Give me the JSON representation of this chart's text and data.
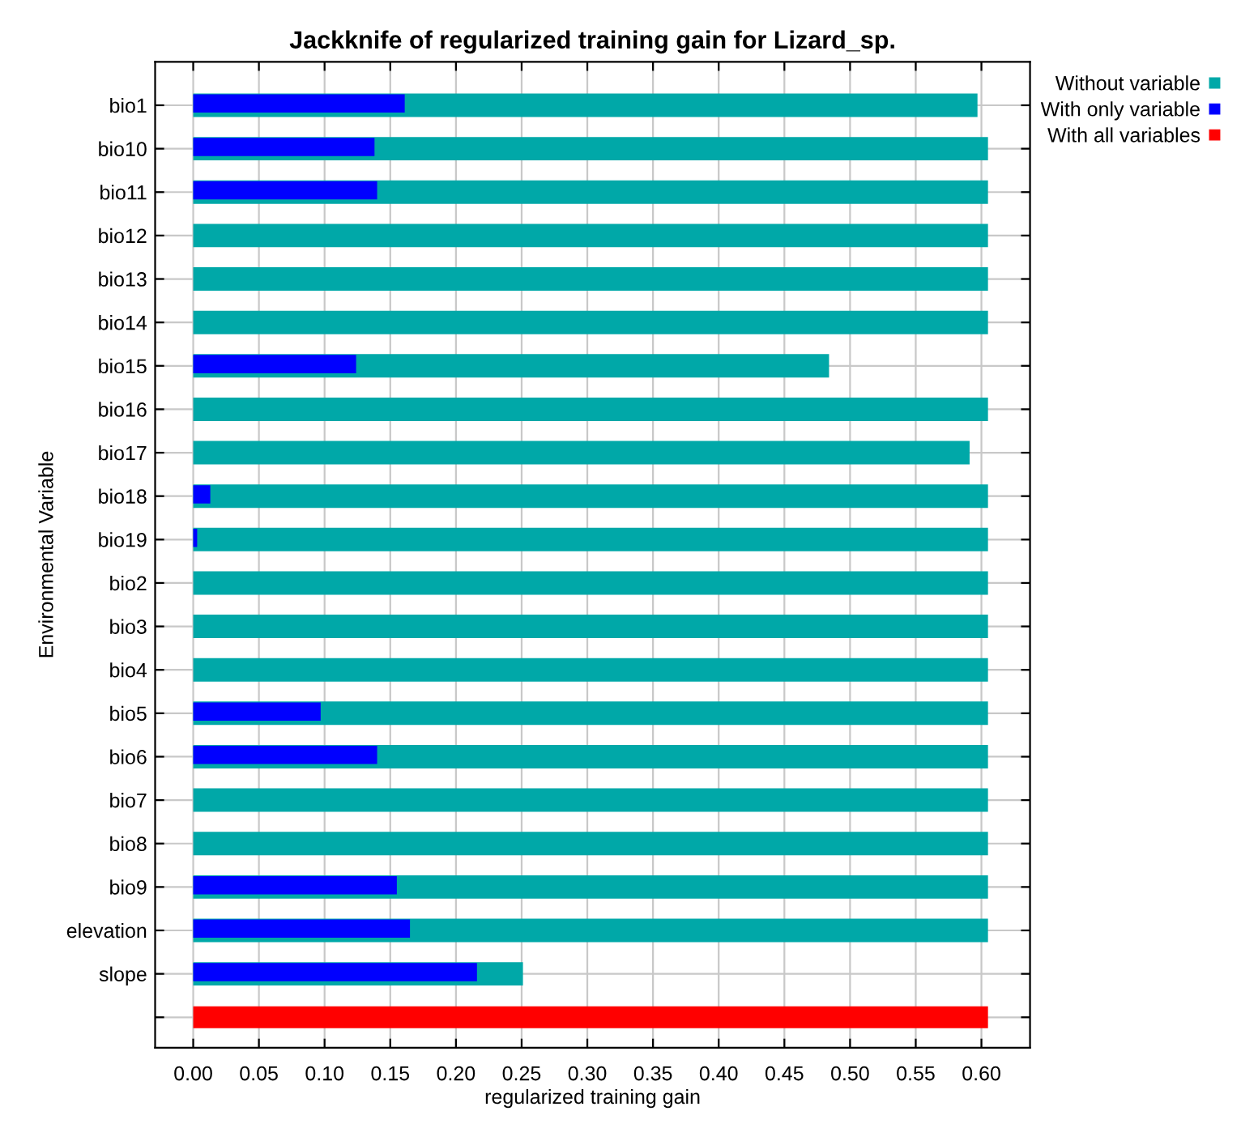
{
  "chart_data": {
    "type": "bar",
    "orientation": "horizontal",
    "title": "Jackknife of regularized training gain for Lizard_sp.",
    "xlabel": "regularized training gain",
    "ylabel": "Environmental Variable",
    "categories": [
      "bio1",
      "bio10",
      "bio11",
      "bio12",
      "bio13",
      "bio14",
      "bio15",
      "bio16",
      "bio17",
      "bio18",
      "bio19",
      "bio2",
      "bio3",
      "bio4",
      "bio5",
      "bio6",
      "bio7",
      "bio8",
      "bio9",
      "elevation",
      "slope",
      null
    ],
    "series": [
      {
        "name": "Without variable",
        "color": "#00a8a8",
        "values": [
          0.597,
          0.605,
          0.605,
          0.605,
          0.605,
          0.605,
          0.484,
          0.605,
          0.591,
          0.605,
          0.605,
          0.605,
          0.605,
          0.605,
          0.605,
          0.605,
          0.605,
          0.605,
          0.605,
          0.605,
          0.251,
          null
        ]
      },
      {
        "name": "With only variable",
        "color": "#0000ff",
        "values": [
          0.161,
          0.138,
          0.14,
          0,
          0,
          0,
          0.124,
          0,
          0,
          0.013,
          0.003,
          0,
          0,
          0,
          0.097,
          0.14,
          0,
          0,
          0.155,
          0.165,
          0.216,
          null
        ]
      },
      {
        "name": "With all variables",
        "color": "#ff0000",
        "values": [
          null,
          null,
          null,
          null,
          null,
          null,
          null,
          null,
          null,
          null,
          null,
          null,
          null,
          null,
          null,
          null,
          null,
          null,
          null,
          null,
          null,
          0.605
        ]
      }
    ],
    "xlim": [
      -0.029,
      0.637
    ],
    "xticks": [
      {
        "value": 0,
        "label": "0.00"
      },
      0.05,
      {
        "value": 0.1,
        "label": "0.10"
      },
      0.15,
      {
        "value": 0.2,
        "label": "0.20"
      },
      0.25,
      {
        "value": 0.3,
        "label": "0.30"
      },
      0.35,
      {
        "value": 0.4,
        "label": "0.40"
      },
      0.45,
      {
        "value": 0.5,
        "label": "0.50"
      },
      0.55,
      {
        "value": 0.6,
        "label": "0.60"
      }
    ],
    "grid": true,
    "legend": "top right"
  }
}
